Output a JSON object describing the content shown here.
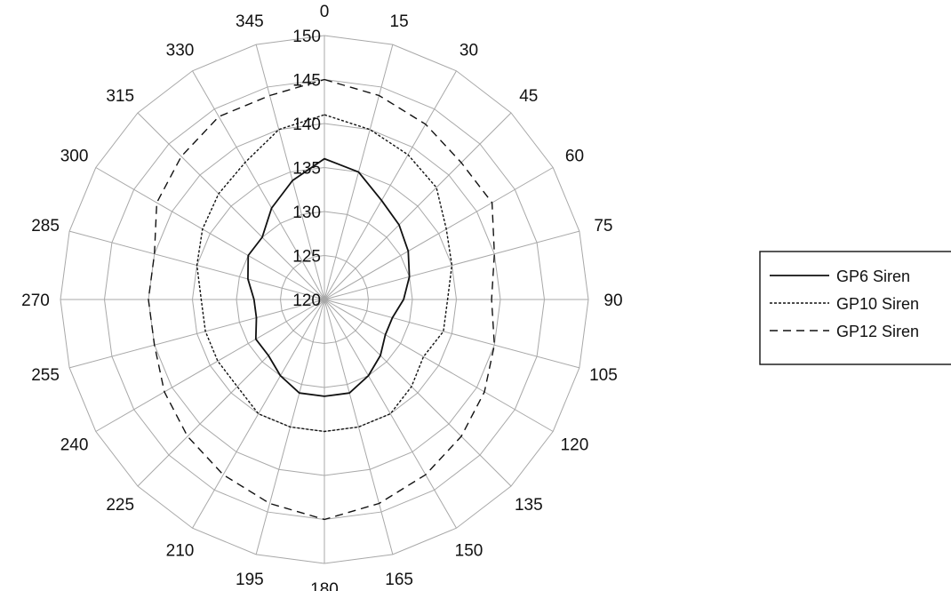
{
  "chart_data": {
    "type": "polar-line",
    "title": "",
    "angle_labels": [
      "0",
      "15",
      "30",
      "45",
      "60",
      "75",
      "90",
      "105",
      "120",
      "135",
      "150",
      "165",
      "180",
      "195",
      "210",
      "225",
      "240",
      "255",
      "270",
      "285",
      "300",
      "315",
      "330",
      "345"
    ],
    "angles": [
      0,
      15,
      30,
      45,
      60,
      75,
      90,
      105,
      120,
      135,
      150,
      165,
      180,
      195,
      210,
      225,
      240,
      255,
      270,
      285,
      300,
      315,
      330,
      345
    ],
    "radial_labels": [
      "120",
      "125",
      "130",
      "135",
      "140",
      "145",
      "150"
    ],
    "radial_ticks": [
      120,
      125,
      130,
      135,
      140,
      145,
      150
    ],
    "rlim": [
      120,
      150
    ],
    "grid": true,
    "legend_position": "right",
    "series": [
      {
        "name": "GP6 Siren",
        "values": [
          136,
          135,
          133,
          132,
          131,
          130,
          129,
          128,
          128,
          129,
          130,
          131,
          131,
          131,
          130,
          129,
          129,
          128,
          128,
          129,
          130,
          130,
          132,
          134
        ],
        "color": "#111111",
        "dash": "solid"
      },
      {
        "name": "GP10 Siren",
        "values": [
          141,
          140,
          139,
          138,
          136,
          135,
          134,
          134,
          133,
          134,
          135,
          135,
          135,
          135,
          135,
          134,
          134,
          134,
          134,
          135,
          136,
          137,
          138,
          140
        ],
        "color": "#111111",
        "dash": "dotted"
      },
      {
        "name": "GP12 Siren",
        "values": [
          145,
          144,
          143,
          142,
          142,
          140,
          139,
          140,
          141,
          142,
          143,
          144,
          145,
          144,
          143,
          142,
          141,
          140,
          140,
          140,
          142,
          143,
          144,
          144
        ],
        "color": "#111111",
        "dash": "dashed"
      }
    ]
  }
}
